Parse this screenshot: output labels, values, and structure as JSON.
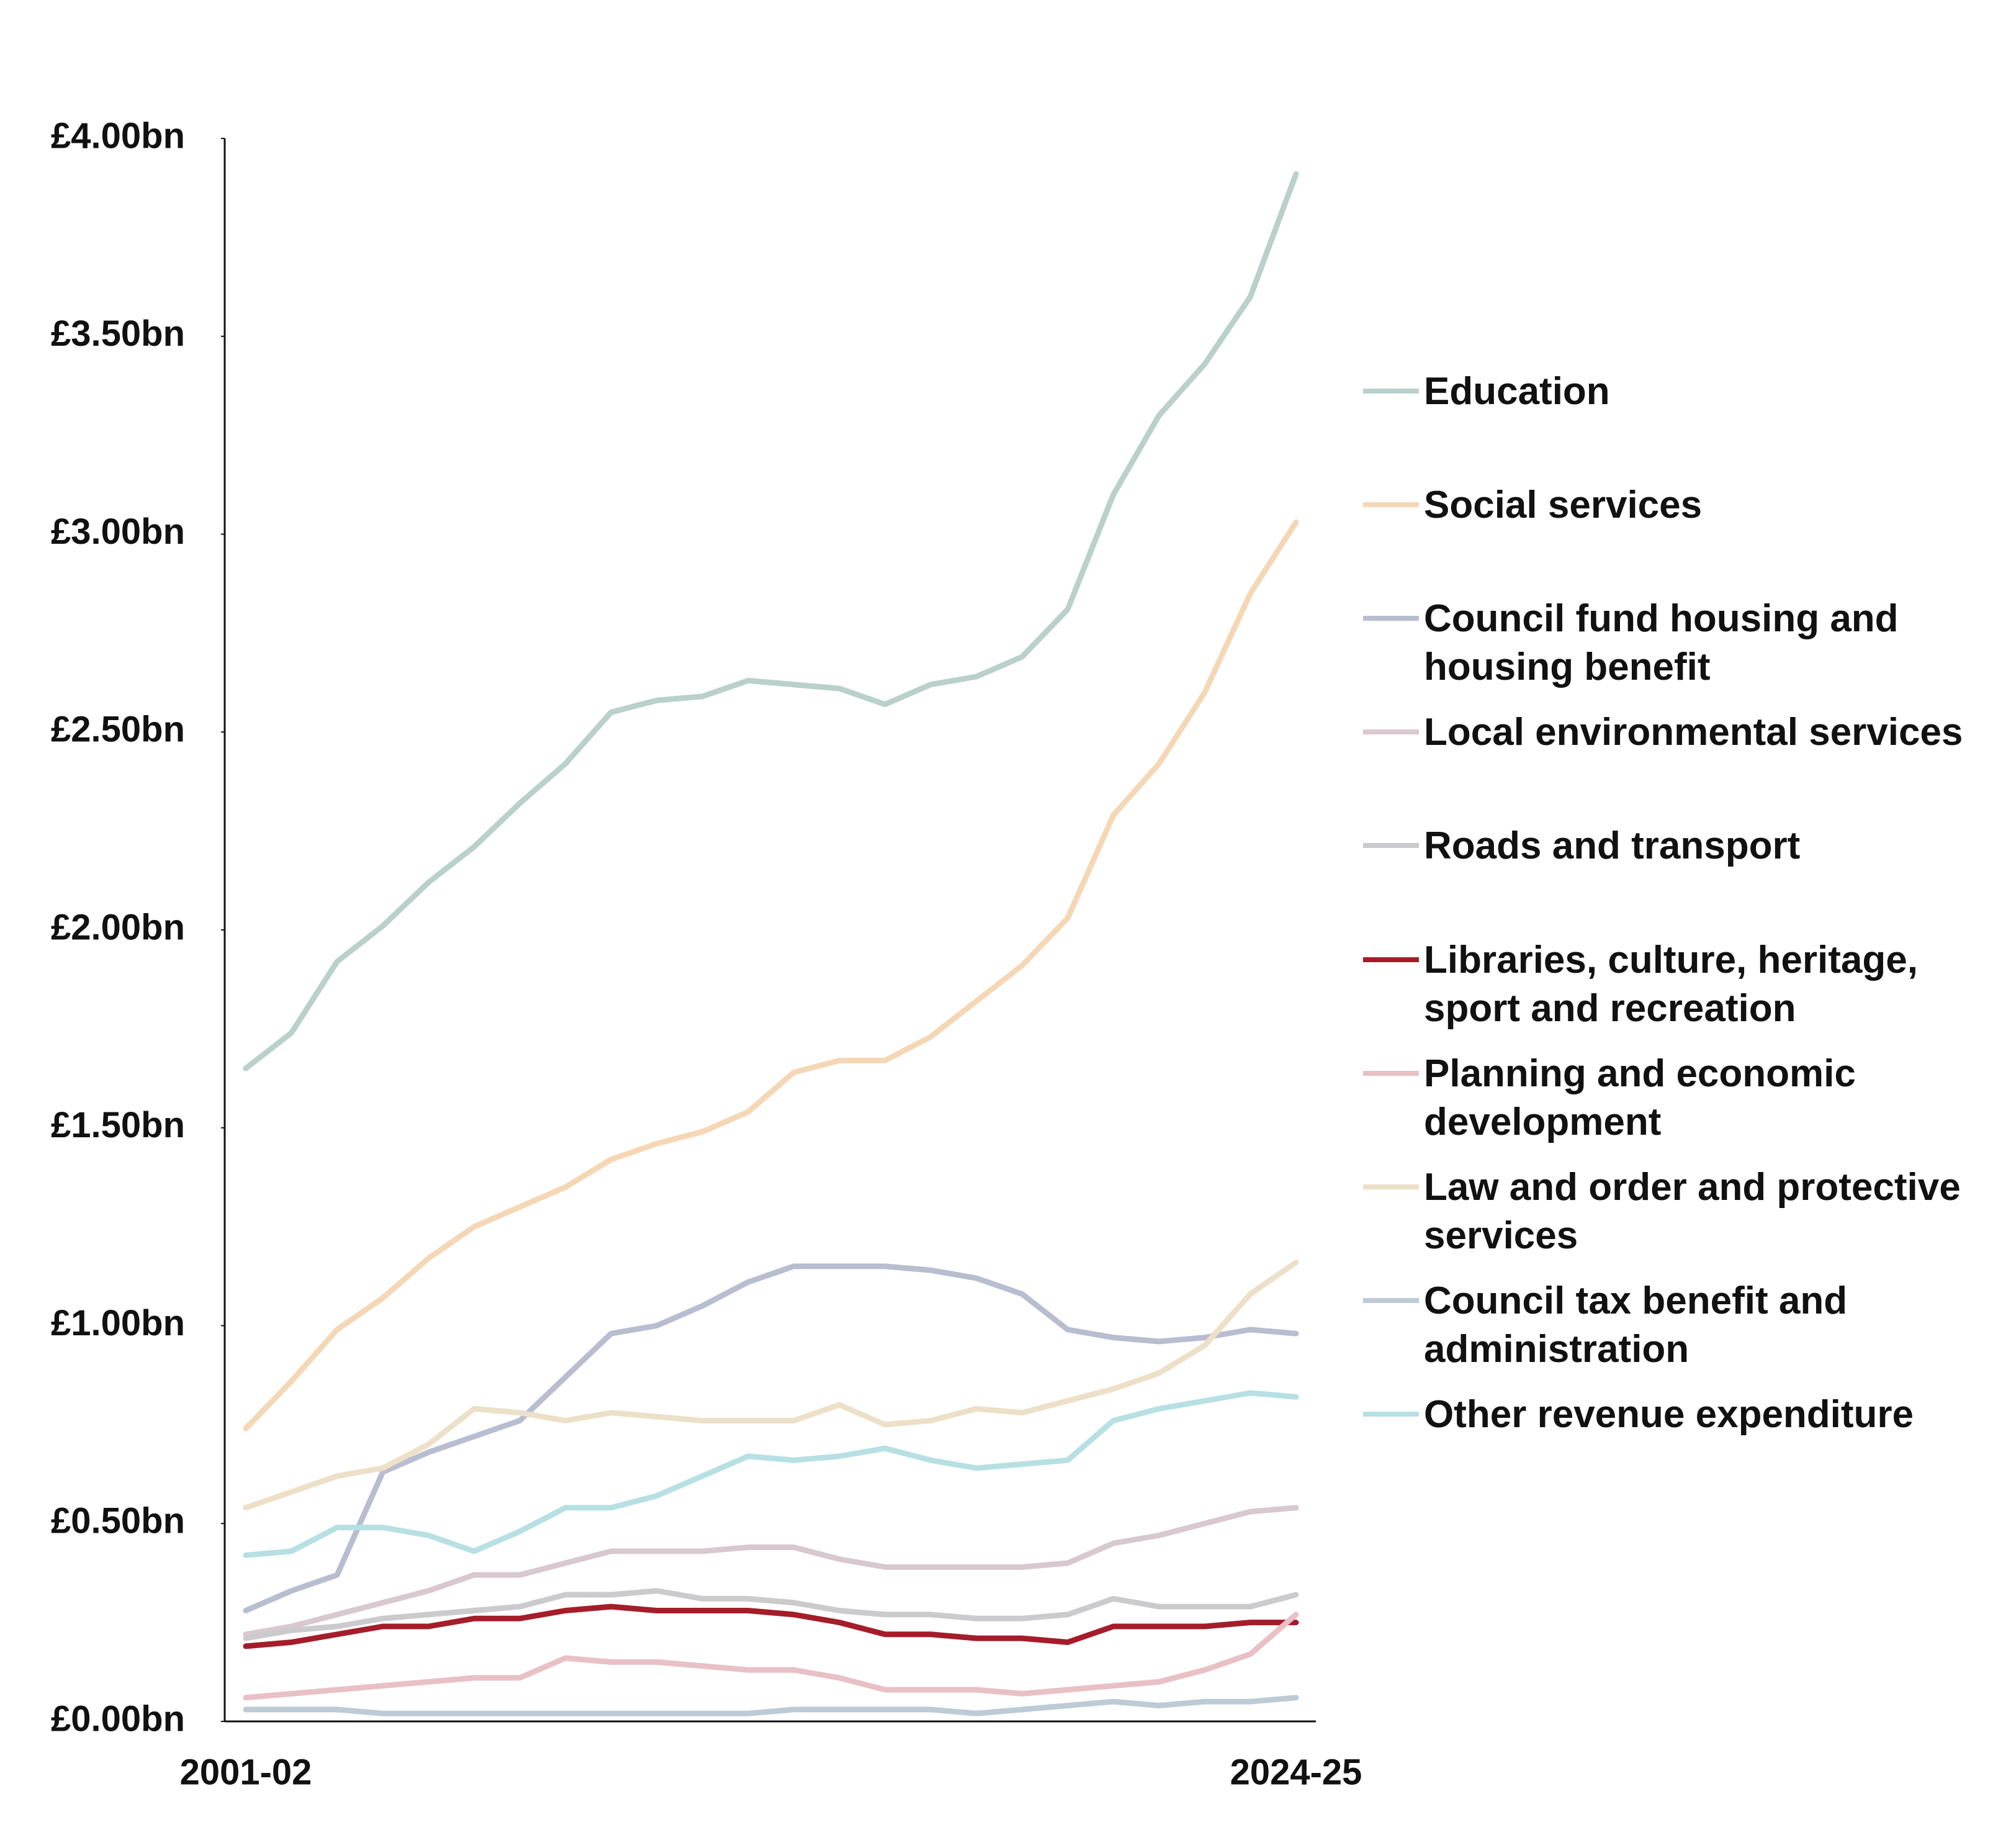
{
  "chart_data": {
    "type": "line",
    "categories": [
      "2001-02",
      null,
      null,
      null,
      null,
      null,
      null,
      null,
      null,
      null,
      null,
      null,
      null,
      null,
      null,
      null,
      null,
      null,
      null,
      null,
      null,
      null,
      null,
      "2024-25"
    ],
    "ylim": [
      0,
      4
    ],
    "yticks": [
      {
        "value": 0,
        "label": "£0.00bn"
      },
      {
        "value": 0.5,
        "label": "£0.50bn"
      },
      {
        "value": 1,
        "label": "£1.00bn"
      },
      {
        "value": 1.5,
        "label": "£1.50bn"
      },
      {
        "value": 2,
        "label": "£2.00bn"
      },
      {
        "value": 2.5,
        "label": "£2.50bn"
      },
      {
        "value": 3,
        "label": "£3.00bn"
      },
      {
        "value": 3.5,
        "label": "£3.50bn"
      },
      {
        "value": 4,
        "label": "£4.00bn"
      }
    ],
    "grid": false,
    "legend": "right",
    "series": [
      {
        "name": "Education",
        "color": "#b9d0cb",
        "values": [
          1.65,
          1.74,
          1.92,
          2.01,
          2.12,
          2.21,
          2.32,
          2.42,
          2.55,
          2.58,
          2.59,
          2.63,
          2.62,
          2.61,
          2.57,
          2.62,
          2.64,
          2.69,
          2.81,
          3.1,
          3.3,
          3.43,
          3.6,
          3.91
        ]
      },
      {
        "name": "Social services",
        "color": "#f5d7b5",
        "values": [
          0.74,
          0.86,
          0.99,
          1.07,
          1.17,
          1.25,
          1.3,
          1.35,
          1.42,
          1.46,
          1.49,
          1.54,
          1.64,
          1.67,
          1.67,
          1.73,
          1.82,
          1.91,
          2.03,
          2.29,
          2.42,
          2.6,
          2.85,
          3.03
        ]
      },
      {
        "name": "Council fund housing and housing benefit",
        "color": "#b8bdd0",
        "values": [
          0.28,
          0.33,
          0.37,
          0.63,
          0.68,
          0.72,
          0.76,
          0.87,
          0.98,
          1.0,
          1.05,
          1.11,
          1.15,
          1.15,
          1.15,
          1.14,
          1.12,
          1.08,
          0.99,
          0.97,
          0.96,
          0.97,
          0.99,
          0.98
        ]
      },
      {
        "name": "Local environmental services",
        "color": "#d8c8cf",
        "values": [
          0.22,
          0.24,
          0.27,
          0.3,
          0.33,
          0.37,
          0.37,
          0.4,
          0.43,
          0.43,
          0.43,
          0.44,
          0.44,
          0.41,
          0.39,
          0.39,
          0.39,
          0.39,
          0.4,
          0.45,
          0.47,
          0.5,
          0.53,
          0.54
        ]
      },
      {
        "name": "Roads and transport",
        "color": "#cbcbcd",
        "values": [
          0.21,
          0.23,
          0.24,
          0.26,
          0.27,
          0.28,
          0.29,
          0.32,
          0.32,
          0.33,
          0.31,
          0.31,
          0.3,
          0.28,
          0.27,
          0.27,
          0.26,
          0.26,
          0.27,
          0.31,
          0.29,
          0.29,
          0.29,
          0.32
        ]
      },
      {
        "name": "Libraries, culture, heritage, sport and recreation",
        "color": "#a51d2a",
        "values": [
          0.19,
          0.2,
          0.22,
          0.24,
          0.24,
          0.26,
          0.26,
          0.28,
          0.29,
          0.28,
          0.28,
          0.28,
          0.27,
          0.25,
          0.22,
          0.22,
          0.21,
          0.21,
          0.2,
          0.24,
          0.24,
          0.24,
          0.25,
          0.25
        ]
      },
      {
        "name": "Planning and economic development",
        "color": "#e8c0c6",
        "values": [
          0.06,
          0.07,
          0.08,
          0.09,
          0.1,
          0.11,
          0.11,
          0.16,
          0.15,
          0.15,
          0.14,
          0.13,
          0.13,
          0.11,
          0.08,
          0.08,
          0.08,
          0.07,
          0.08,
          0.09,
          0.1,
          0.13,
          0.17,
          0.27
        ]
      },
      {
        "name": "Law and order and protective services",
        "color": "#ece0c8",
        "values": [
          0.54,
          0.58,
          0.62,
          0.64,
          0.7,
          0.79,
          0.78,
          0.76,
          0.78,
          0.77,
          0.76,
          0.76,
          0.76,
          0.8,
          0.75,
          0.76,
          0.79,
          0.78,
          0.81,
          0.84,
          0.88,
          0.95,
          1.08,
          1.16
        ]
      },
      {
        "name": "Council tax benefit and administration",
        "color": "#bccbd6",
        "values": [
          0.03,
          0.03,
          0.03,
          0.02,
          0.02,
          0.02,
          0.02,
          0.02,
          0.02,
          0.02,
          0.02,
          0.02,
          0.03,
          0.03,
          0.03,
          0.03,
          0.02,
          0.03,
          0.04,
          0.05,
          0.04,
          0.05,
          0.05,
          0.06
        ]
      },
      {
        "name": "Other revenue expenditure",
        "color": "#b7e0e3",
        "values": [
          0.42,
          0.43,
          0.49,
          0.49,
          0.47,
          0.43,
          0.48,
          0.54,
          0.54,
          0.57,
          0.62,
          0.67,
          0.66,
          0.67,
          0.69,
          0.66,
          0.64,
          0.65,
          0.66,
          0.76,
          0.79,
          0.81,
          0.83,
          0.82
        ]
      }
    ]
  }
}
